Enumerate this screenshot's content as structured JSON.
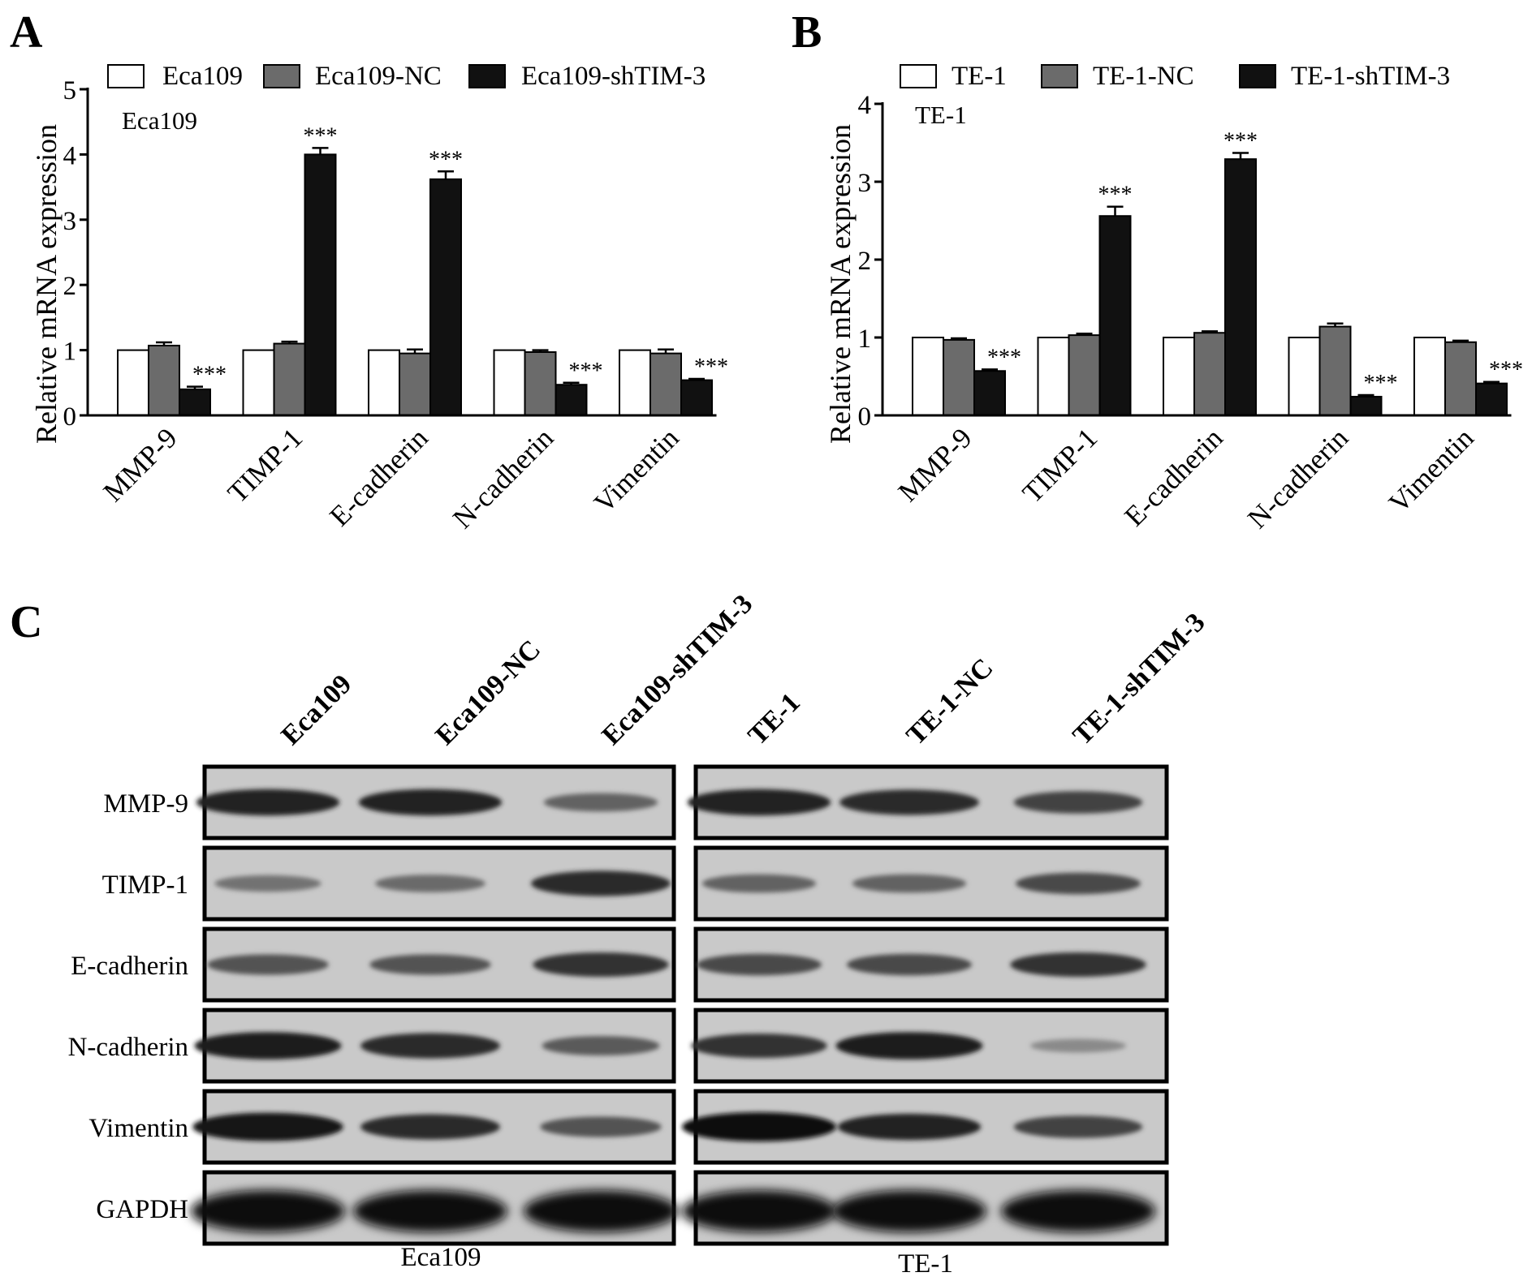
{
  "panels": {
    "a": "A",
    "b": "B",
    "c": "C"
  },
  "colors": {
    "control": "#ffffff",
    "nc": "#6b6b6b",
    "sh": "#111111"
  },
  "chart_data": [
    {
      "type": "bar",
      "panel": "A",
      "inner_label": "Eca109",
      "ylabel": "Relative mRNA expression",
      "ylim": [
        0,
        5
      ],
      "yticks": [
        0,
        1,
        2,
        3,
        4,
        5
      ],
      "categories": [
        "MMP-9",
        "TIMP-1",
        "E-cadherin",
        "N-cadherin",
        "Vimentin"
      ],
      "series": [
        {
          "name": "Eca109",
          "values": [
            1.0,
            1.0,
            1.0,
            1.0,
            1.0
          ],
          "errors": [
            0,
            0,
            0,
            0,
            0
          ]
        },
        {
          "name": "Eca109-NC",
          "values": [
            1.07,
            1.1,
            0.95,
            0.97,
            0.95
          ],
          "errors": [
            0.05,
            0.03,
            0.06,
            0.03,
            0.06
          ]
        },
        {
          "name": "Eca109-shTIM-3",
          "values": [
            0.4,
            4.0,
            3.62,
            0.47,
            0.54
          ],
          "errors": [
            0.04,
            0.1,
            0.12,
            0.03,
            0.02
          ]
        }
      ],
      "annotations": [
        "",
        "***",
        "***",
        "",
        ""
      ],
      "annotations_sh": [
        "***",
        "***",
        "***",
        "***",
        "***"
      ]
    },
    {
      "type": "bar",
      "panel": "B",
      "inner_label": "TE-1",
      "ylabel": "Relative mRNA expression",
      "ylim": [
        0,
        4
      ],
      "yticks": [
        0,
        1,
        2,
        3,
        4
      ],
      "categories": [
        "MMP-9",
        "TIMP-1",
        "E-cadherin",
        "N-cadherin",
        "Vimentin"
      ],
      "series": [
        {
          "name": "TE-1",
          "values": [
            1.0,
            1.0,
            1.0,
            1.0,
            1.0
          ],
          "errors": [
            0,
            0,
            0,
            0,
            0
          ]
        },
        {
          "name": "TE-1-NC",
          "values": [
            0.97,
            1.03,
            1.06,
            1.14,
            0.94
          ],
          "errors": [
            0.02,
            0.02,
            0.02,
            0.04,
            0.02
          ]
        },
        {
          "name": "TE-1-shTIM-3",
          "values": [
            0.57,
            2.56,
            3.29,
            0.24,
            0.41
          ],
          "errors": [
            0.02,
            0.12,
            0.08,
            0.02,
            0.02
          ]
        }
      ],
      "annotations_sh": [
        "***",
        "***",
        "***",
        "***",
        "***"
      ]
    }
  ],
  "blot": {
    "left_lanes": [
      "Eca109",
      "Eca109-NC",
      "Eca109-shTIM-3"
    ],
    "right_lanes": [
      "TE-1",
      "TE-1-NC",
      "TE-1-shTIM-3"
    ],
    "rows": [
      "MMP-9",
      "TIMP-1",
      "E-cadherin",
      "N-cadherin",
      "Vimentin",
      "GAPDH"
    ],
    "left_caption": "Eca109",
    "right_caption": "TE-1",
    "left_intensity": [
      [
        0.85,
        0.85,
        0.45
      ],
      [
        0.35,
        0.4,
        0.8
      ],
      [
        0.55,
        0.55,
        0.75
      ],
      [
        0.9,
        0.8,
        0.5
      ],
      [
        0.95,
        0.8,
        0.55
      ],
      [
        1.0,
        1.0,
        1.0
      ]
    ],
    "right_intensity": [
      [
        0.85,
        0.8,
        0.65
      ],
      [
        0.45,
        0.45,
        0.6
      ],
      [
        0.6,
        0.6,
        0.75
      ],
      [
        0.75,
        0.9,
        0.2
      ],
      [
        1.0,
        0.85,
        0.65
      ],
      [
        1.0,
        1.0,
        1.0
      ]
    ]
  }
}
